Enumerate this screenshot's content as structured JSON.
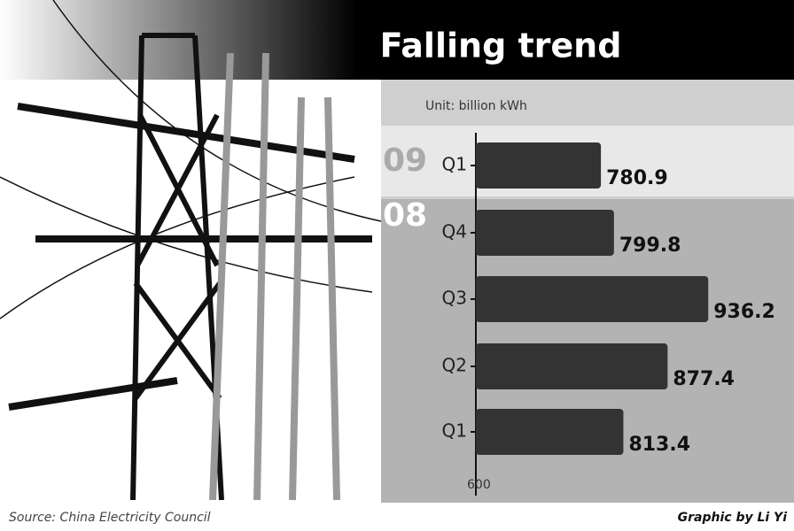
{
  "chart_data": {
    "type": "bar",
    "orientation": "horizontal",
    "title": "Falling trend",
    "subtitle": "Unit: billion kWh",
    "groups": [
      "09",
      "08"
    ],
    "categories": [
      "Q1",
      "Q4",
      "Q3",
      "Q2",
      "Q1"
    ],
    "values": [
      780.9,
      799.8,
      936.2,
      877.4,
      813.4
    ],
    "color": "#333333",
    "xlim": [
      600,
      1050
    ],
    "xticks": [
      600
    ],
    "source": "Source: China Electricity Council",
    "credit": "Graphic by Li Yi"
  }
}
